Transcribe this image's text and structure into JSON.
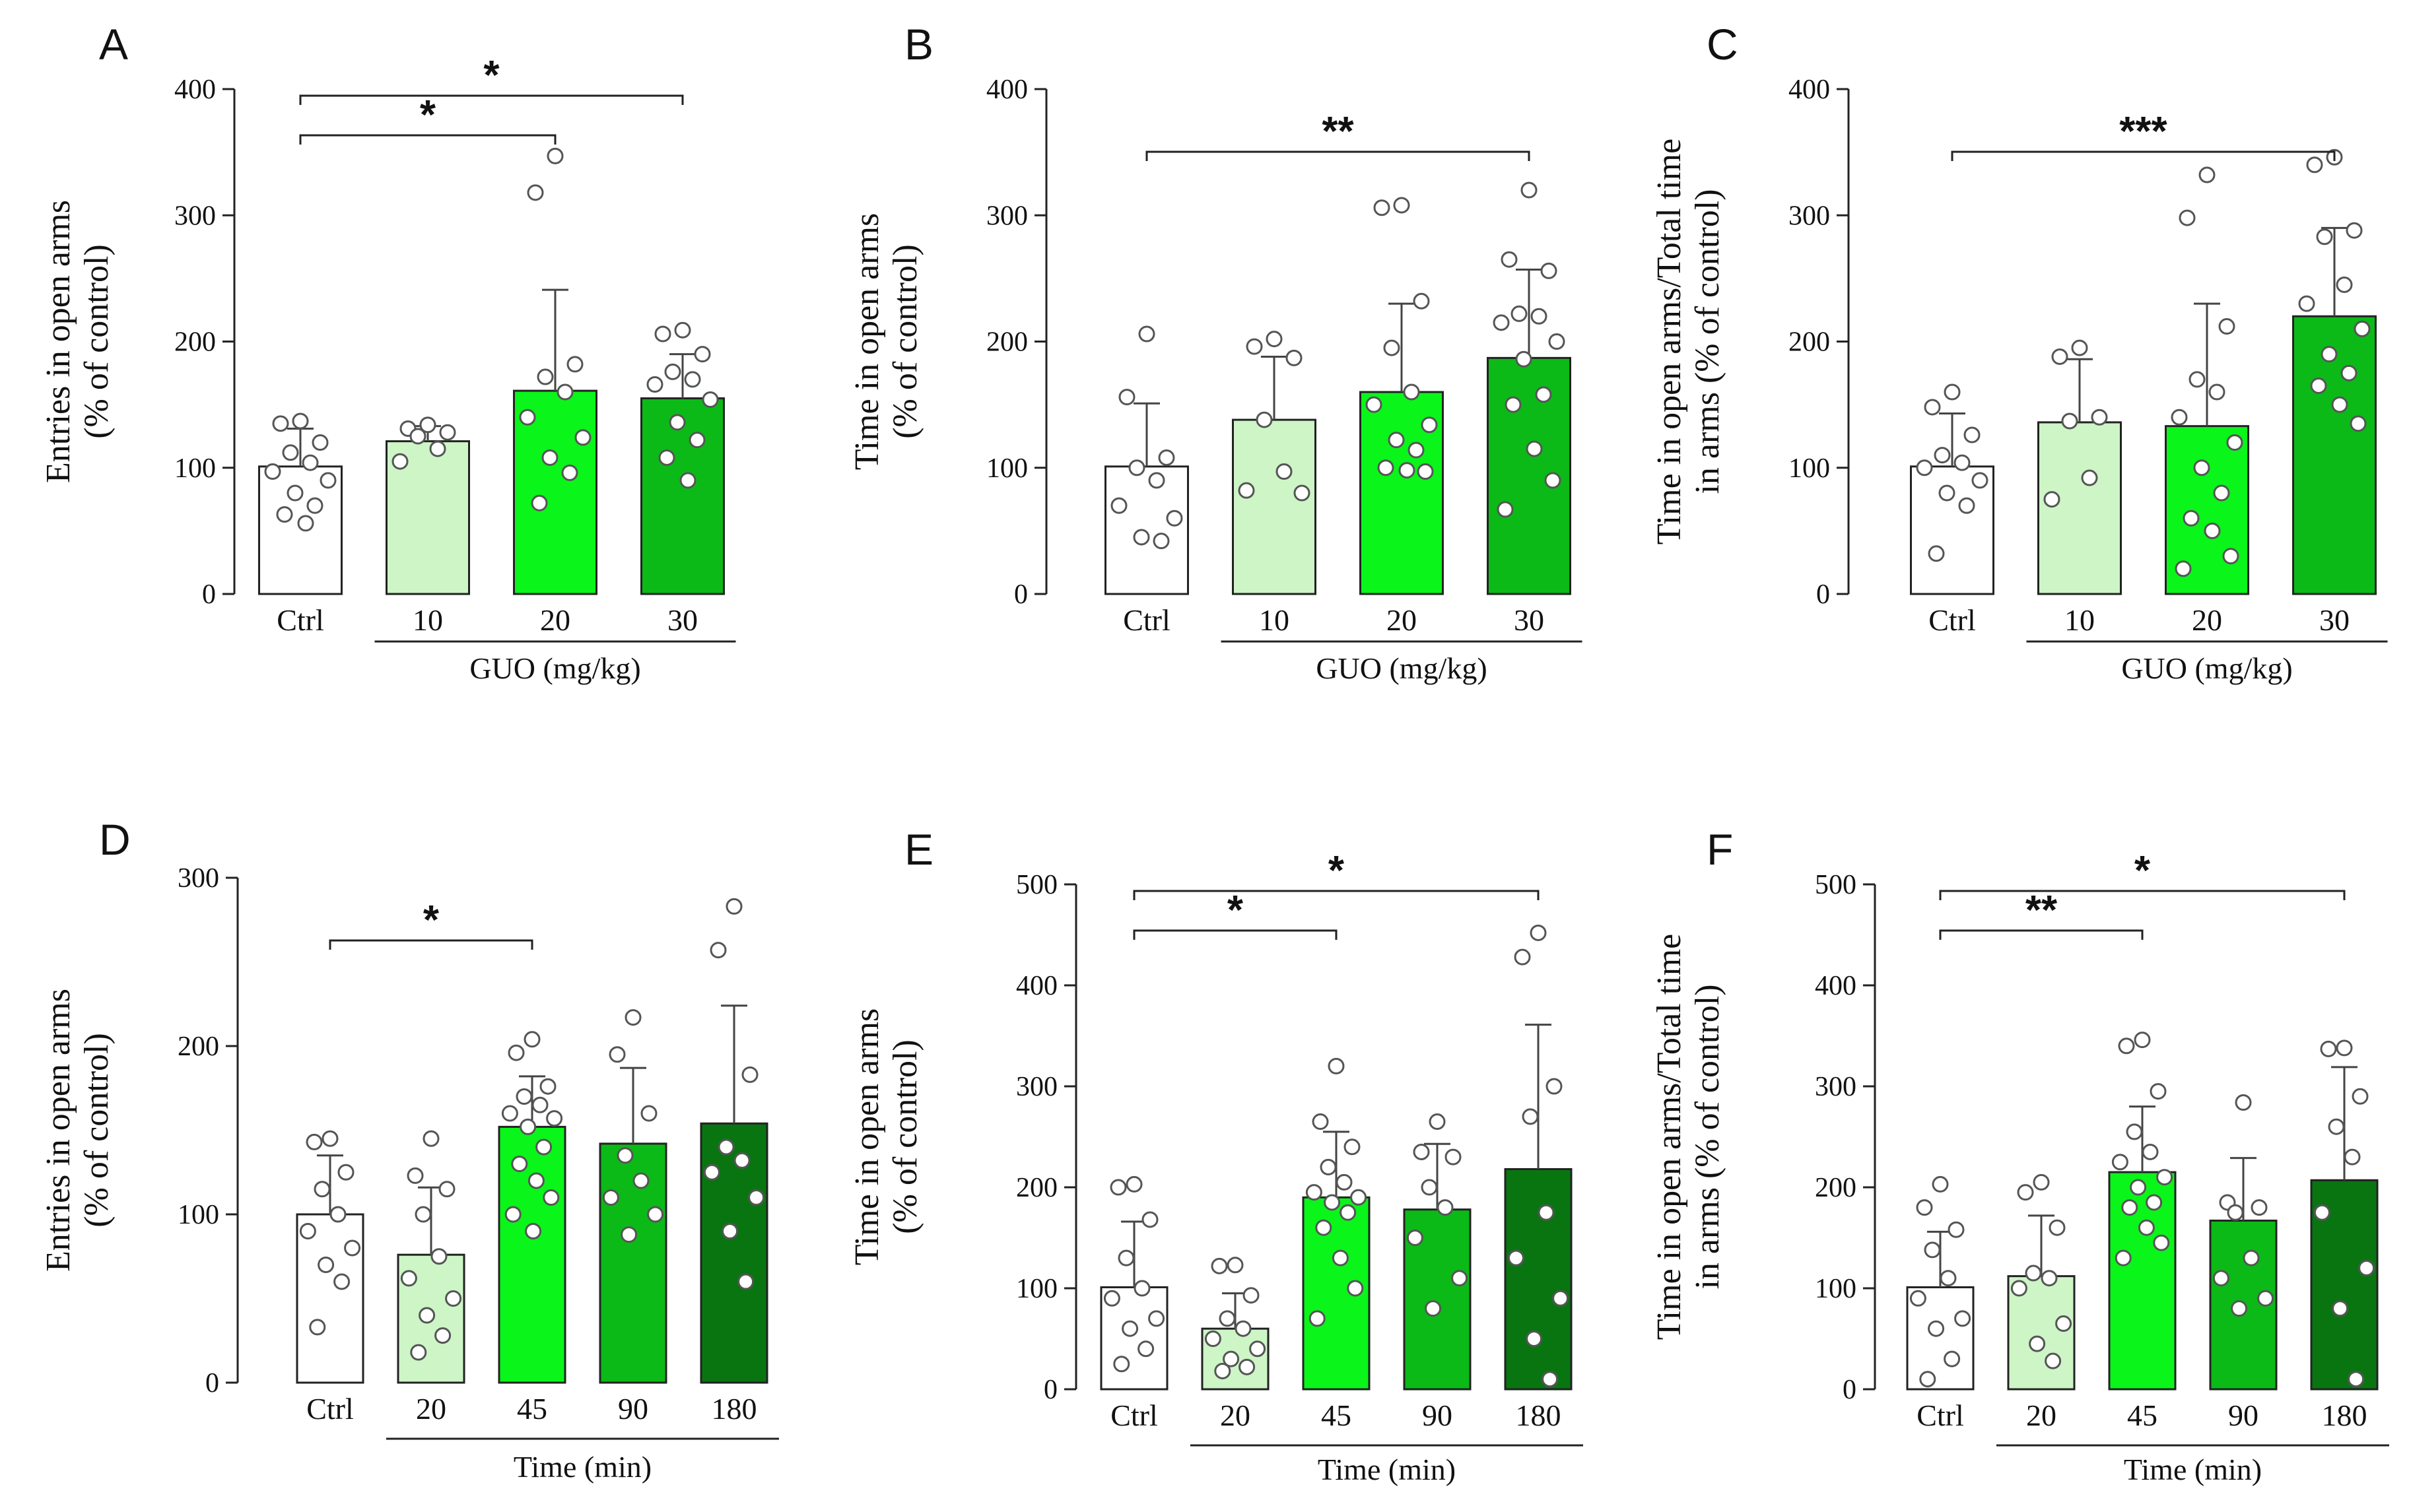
{
  "figure": "Six bar charts of elevated plus maze results, percent of control",
  "chart_data": [
    {
      "type": "bar",
      "panel": "A",
      "title": "",
      "ylabel_lines": [
        "Entries in open arms",
        "(% of control)"
      ],
      "ylim": [
        0,
        400
      ],
      "yticks": [
        0,
        100,
        200,
        300,
        400
      ],
      "categories": [
        "Ctrl",
        "10",
        "20",
        "30"
      ],
      "group_label": "GUO (mg/kg)",
      "group_start": 1,
      "values": [
        101,
        121,
        161,
        155
      ],
      "errors": [
        30,
        12,
        80,
        35
      ],
      "colors": [
        "#ffffff",
        "#cdf5c6",
        "#0af51a",
        "#0bba17"
      ],
      "points": [
        [
          137,
          135,
          120,
          112,
          104,
          97,
          90,
          80,
          70,
          63,
          56
        ],
        [
          134,
          131,
          128,
          125,
          115,
          105
        ],
        [
          347,
          318,
          182,
          172,
          160,
          140,
          124,
          108,
          96,
          72
        ],
        [
          209,
          206,
          190,
          176,
          170,
          166,
          154,
          136,
          122,
          108,
          90
        ]
      ],
      "comparisons": [
        {
          "from": 0,
          "to": 2,
          "label": "*"
        },
        {
          "from": 0,
          "to": 3,
          "label": "*"
        }
      ]
    },
    {
      "type": "bar",
      "panel": "B",
      "title": "",
      "ylabel_lines": [
        "Time in open arms",
        "(% of control)"
      ],
      "ylim": [
        0,
        400
      ],
      "yticks": [
        0,
        100,
        200,
        300,
        400
      ],
      "categories": [
        "Ctrl",
        "10",
        "20",
        "30"
      ],
      "group_label": "GUO (mg/kg)",
      "group_start": 1,
      "values": [
        101,
        138,
        160,
        187
      ],
      "errors": [
        50,
        50,
        70,
        70
      ],
      "colors": [
        "#ffffff",
        "#cdf5c6",
        "#0af51a",
        "#0bba17"
      ],
      "points": [
        [
          206,
          156,
          108,
          100,
          90,
          70,
          60,
          45,
          42
        ],
        [
          202,
          196,
          187,
          138,
          97,
          82,
          80
        ],
        [
          308,
          306,
          232,
          195,
          160,
          150,
          134,
          122,
          114,
          100,
          98,
          97
        ],
        [
          320,
          265,
          256,
          222,
          220,
          215,
          200,
          186,
          158,
          150,
          115,
          90,
          67
        ]
      ],
      "comparisons": [
        {
          "from": 0,
          "to": 3,
          "label": "**"
        }
      ]
    },
    {
      "type": "bar",
      "panel": "C",
      "title": "",
      "ylabel_lines": [
        "Time in open arms/Total time",
        "in arms (% of control)"
      ],
      "ylim": [
        0,
        400
      ],
      "yticks": [
        0,
        100,
        200,
        300,
        400
      ],
      "categories": [
        "Ctrl",
        "10",
        "20",
        "30"
      ],
      "group_label": "GUO (mg/kg)",
      "group_start": 1,
      "values": [
        101,
        136,
        133,
        220
      ],
      "errors": [
        42,
        50,
        97,
        70
      ],
      "colors": [
        "#ffffff",
        "#cdf5c6",
        "#0af51a",
        "#0bba17"
      ],
      "points": [
        [
          160,
          148,
          126,
          110,
          104,
          100,
          90,
          80,
          70,
          32
        ],
        [
          195,
          188,
          140,
          137,
          92,
          75
        ],
        [
          332,
          298,
          212,
          170,
          160,
          140,
          120,
          100,
          80,
          60,
          50,
          30,
          20
        ],
        [
          346,
          340,
          288,
          283,
          245,
          230,
          210,
          190,
          175,
          165,
          150,
          135
        ]
      ],
      "comparisons": [
        {
          "from": 0,
          "to": 3,
          "label": "***"
        }
      ]
    },
    {
      "type": "bar",
      "panel": "D",
      "title": "",
      "ylabel_lines": [
        "Entries in open arms",
        "(% of control)"
      ],
      "ylim": [
        0,
        300
      ],
      "yticks": [
        0,
        100,
        200,
        300
      ],
      "categories": [
        "Ctrl",
        "20",
        "45",
        "90",
        "180"
      ],
      "group_label": "Time (min)",
      "group_start": 1,
      "values": [
        100,
        76,
        152,
        142,
        154
      ],
      "errors": [
        35,
        40,
        30,
        45,
        70
      ],
      "colors": [
        "#ffffff",
        "#cdf5c6",
        "#0af51a",
        "#0bba17",
        "#087511"
      ],
      "points": [
        [
          145,
          143,
          125,
          115,
          100,
          90,
          80,
          70,
          60,
          33
        ],
        [
          145,
          123,
          115,
          100,
          75,
          62,
          50,
          40,
          28,
          18
        ],
        [
          204,
          196,
          176,
          170,
          165,
          160,
          157,
          152,
          140,
          130,
          120,
          110,
          100,
          90
        ],
        [
          217,
          195,
          160,
          135,
          120,
          110,
          100,
          88
        ],
        [
          283,
          257,
          183,
          140,
          132,
          125,
          110,
          90,
          60
        ]
      ],
      "comparisons": [
        {
          "from": 0,
          "to": 2,
          "label": "*"
        }
      ]
    },
    {
      "type": "bar",
      "panel": "E",
      "title": "",
      "ylabel_lines": [
        "Time in open arms",
        "(% of control)"
      ],
      "ylim": [
        0,
        500
      ],
      "yticks": [
        0,
        100,
        200,
        300,
        400,
        500
      ],
      "categories": [
        "Ctrl",
        "20",
        "45",
        "90",
        "180"
      ],
      "group_label": "Time (min)",
      "group_start": 1,
      "values": [
        101,
        60,
        190,
        178,
        218
      ],
      "errors": [
        65,
        35,
        65,
        65,
        143
      ],
      "colors": [
        "#ffffff",
        "#cdf5c6",
        "#0af51a",
        "#0bba17",
        "#087511"
      ],
      "points": [
        [
          203,
          200,
          168,
          130,
          100,
          90,
          70,
          60,
          40,
          25
        ],
        [
          123,
          122,
          93,
          70,
          60,
          50,
          40,
          30,
          22,
          18
        ],
        [
          320,
          265,
          240,
          220,
          205,
          195,
          190,
          185,
          175,
          160,
          130,
          100,
          70
        ],
        [
          265,
          235,
          230,
          200,
          180,
          150,
          110,
          80
        ],
        [
          452,
          428,
          300,
          270,
          175,
          130,
          90,
          50,
          10
        ]
      ],
      "comparisons": [
        {
          "from": 0,
          "to": 2,
          "label": "*"
        },
        {
          "from": 0,
          "to": 4,
          "label": "*"
        }
      ]
    },
    {
      "type": "bar",
      "panel": "F",
      "title": "",
      "ylabel_lines": [
        "Time in open arms/Total time",
        "in arms (% of control)"
      ],
      "ylim": [
        0,
        500
      ],
      "yticks": [
        0,
        100,
        200,
        300,
        400,
        500
      ],
      "categories": [
        "Ctrl",
        "20",
        "45",
        "90",
        "180"
      ],
      "group_label": "Time (min)",
      "group_start": 1,
      "values": [
        101,
        112,
        215,
        167,
        207
      ],
      "errors": [
        55,
        60,
        65,
        62,
        112
      ],
      "colors": [
        "#ffffff",
        "#cdf5c6",
        "#0af51a",
        "#0bba17",
        "#087511"
      ],
      "points": [
        [
          203,
          180,
          158,
          138,
          110,
          90,
          70,
          60,
          30,
          10
        ],
        [
          205,
          195,
          160,
          115,
          110,
          100,
          65,
          45,
          28
        ],
        [
          346,
          340,
          295,
          255,
          235,
          225,
          210,
          200,
          185,
          180,
          160,
          145,
          130
        ],
        [
          284,
          185,
          180,
          175,
          130,
          110,
          90,
          80
        ],
        [
          338,
          337,
          290,
          260,
          230,
          175,
          120,
          80,
          10
        ]
      ],
      "comparisons": [
        {
          "from": 0,
          "to": 2,
          "label": "**"
        },
        {
          "from": 0,
          "to": 4,
          "label": "*"
        }
      ]
    }
  ]
}
